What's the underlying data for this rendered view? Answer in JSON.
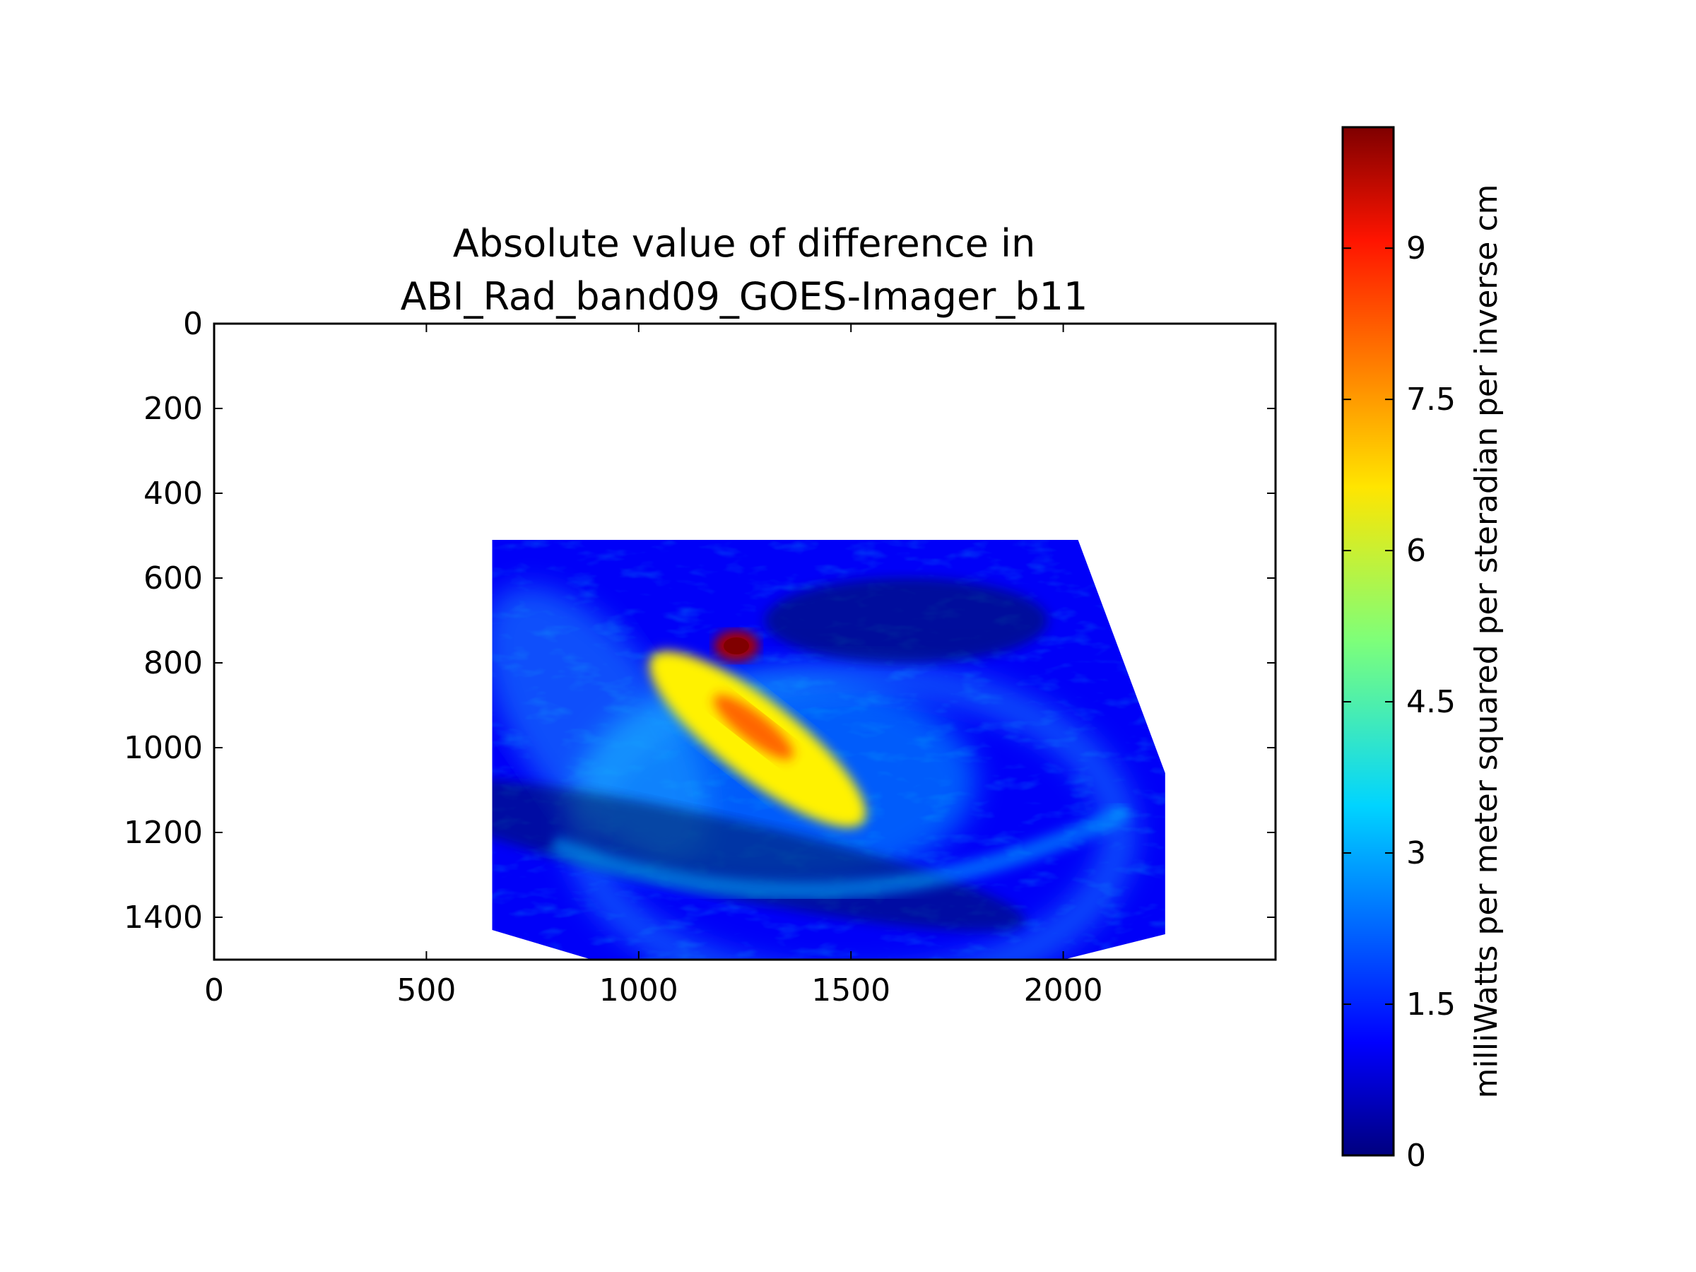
{
  "chart_data": {
    "type": "heatmap",
    "title_lines": [
      "Absolute value of difference in",
      "ABI_Rad_band09_GOES-Imager_b11"
    ],
    "colormap": "jet",
    "xlim": [
      0,
      2500
    ],
    "ylim": [
      1500,
      0
    ],
    "x_ticks": [
      0,
      500,
      1000,
      1500,
      2000
    ],
    "y_ticks": [
      0,
      200,
      400,
      600,
      800,
      1000,
      1200,
      1400
    ],
    "x_tick_labels": [
      "0",
      "500",
      "1000",
      "1500",
      "2000"
    ],
    "y_tick_labels": [
      "0",
      "200",
      "400",
      "600",
      "800",
      "1000",
      "1200",
      "1400"
    ],
    "data_region": {
      "comment": "",
      "outline": [
        [
          655,
          510
        ],
        [
          2035,
          510
        ],
        [
          2240,
          1060
        ],
        [
          2240,
          1440
        ],
        [
          2000,
          1500
        ],
        [
          890,
          1500
        ],
        [
          655,
          1430
        ]
      ]
    },
    "features": [
      {
        "kind": "hotspot",
        "x": 1230,
        "y": 760,
        "value": 9.8
      },
      {
        "kind": "band",
        "x": 1280,
        "y": 980,
        "value": 6.5
      },
      {
        "kind": "arc",
        "x": 1500,
        "y": 1330,
        "value": 3.0
      }
    ],
    "background_value": 1.2,
    "colorbar": {
      "label": "milliWatts per meter squared per steradian per inverse cm",
      "range": [
        0,
        10.2
      ],
      "ticks": [
        0,
        1.5,
        3,
        4.5,
        6,
        7.5,
        9
      ],
      "tick_labels": [
        "0",
        "1.5",
        "3",
        "4.5",
        "6",
        "7.5",
        "9"
      ]
    }
  }
}
